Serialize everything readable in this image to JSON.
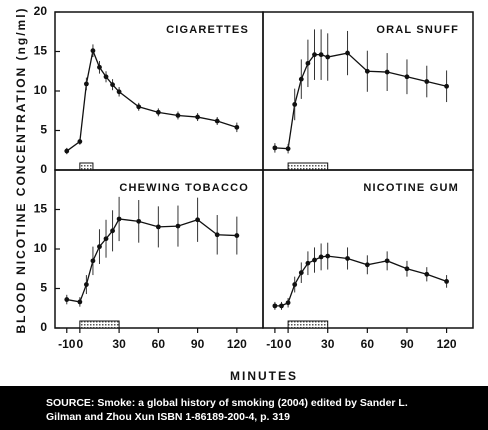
{
  "ylabel": "BLOOD NICOTINE CONCENTRATION (ng/ml)",
  "xlabel": "MINUTES",
  "source": [
    "SOURCE:  Smoke: a global history of smoking (2004) edited by Sander L.",
    "Gilman and Zhou Xun ISBN 1-86189-200-4, p. 319"
  ],
  "chart_data": [
    {
      "type": "line",
      "title": "CIGARETTES",
      "x": [
        -10,
        0,
        5,
        10,
        15,
        20,
        25,
        30,
        45,
        60,
        75,
        90,
        105,
        120
      ],
      "values": [
        2.4,
        3.6,
        10.9,
        15.1,
        13,
        11.8,
        10.8,
        9.9,
        8,
        7.3,
        6.9,
        6.7,
        6.2,
        5.4
      ],
      "errors": [
        0.4,
        0.4,
        0.8,
        0.8,
        0.8,
        0.7,
        0.7,
        0.6,
        0.5,
        0.5,
        0.5,
        0.5,
        0.5,
        0.6
      ],
      "exposure": [
        0,
        10
      ],
      "xlim": [
        -19,
        140
      ],
      "ylim": [
        0,
        20
      ],
      "yticks": [
        0,
        5,
        10,
        15,
        20
      ]
    },
    {
      "type": "line",
      "title": "ORAL SNUFF",
      "x": [
        -10,
        0,
        5,
        10,
        15,
        20,
        25,
        30,
        45,
        60,
        75,
        90,
        105,
        120
      ],
      "values": [
        2.8,
        2.7,
        8.3,
        11.5,
        13.5,
        14.6,
        14.6,
        14.3,
        14.8,
        12.5,
        12.4,
        11.8,
        11.2,
        10.6
      ],
      "errors": [
        0.6,
        0.6,
        2,
        2.5,
        3,
        3.2,
        3.2,
        3,
        2.8,
        2.6,
        2.4,
        2.2,
        2,
        2
      ],
      "exposure": [
        0,
        30
      ],
      "xlim": [
        -19,
        140
      ],
      "ylim": [
        0,
        20
      ]
    },
    {
      "type": "line",
      "title": "CHEWING TOBACCO",
      "x": [
        -10,
        0,
        5,
        10,
        15,
        20,
        25,
        30,
        45,
        60,
        75,
        90,
        105,
        120
      ],
      "values": [
        3.6,
        3.3,
        5.5,
        8.5,
        10.3,
        11.3,
        12.3,
        13.8,
        13.5,
        12.8,
        12.9,
        13.7,
        11.8,
        11.7
      ],
      "errors": [
        0.6,
        0.6,
        1.2,
        1.8,
        2.2,
        2.4,
        2.6,
        2.8,
        2.7,
        2.6,
        2.6,
        2.8,
        2.5,
        2.4
      ],
      "exposure": [
        0,
        30
      ],
      "xlim": [
        -19,
        140
      ],
      "ylim": [
        0,
        20
      ],
      "yticks": [
        0,
        5,
        10,
        15
      ],
      "xticks": [
        -10,
        0,
        30,
        60,
        90,
        120
      ]
    },
    {
      "type": "line",
      "title": "NICOTINE GUM",
      "x": [
        -10,
        -5,
        0,
        5,
        10,
        15,
        20,
        25,
        30,
        45,
        60,
        75,
        90,
        105,
        120
      ],
      "values": [
        2.8,
        2.8,
        3.2,
        5.5,
        7,
        8.2,
        8.6,
        9,
        9.1,
        8.8,
        8,
        8.5,
        7.5,
        6.8,
        5.9
      ],
      "errors": [
        0.5,
        0.5,
        0.6,
        1,
        1.3,
        1.5,
        1.6,
        1.7,
        1.7,
        1.4,
        1.2,
        1.2,
        1,
        0.9,
        0.8
      ],
      "exposure": [
        0,
        30
      ],
      "xlim": [
        -19,
        140
      ],
      "ylim": [
        0,
        20
      ],
      "xticks": [
        -10,
        0,
        30,
        60,
        90,
        120
      ]
    }
  ]
}
